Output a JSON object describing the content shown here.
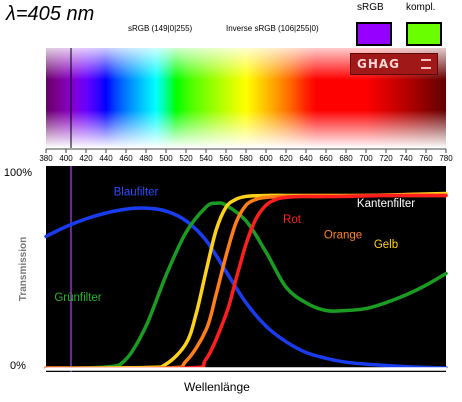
{
  "wavelength": {
    "title": "λ=405 nm",
    "srgb": "sRGB (149|0|255)",
    "inverse": "Inverse sRGB (106|255|0)",
    "swatch_label_srgb": "sRGB",
    "swatch_label_kompl": "kompl.",
    "swatch_color_srgb": "#9500ff",
    "swatch_color_kompl": "#6aff00"
  },
  "logo_text": "GHAG",
  "chart_data": {
    "type": "line",
    "title": "",
    "xlabel": "Wellenlänge",
    "ylabel": "Transmission",
    "xlim": [
      380,
      780
    ],
    "ylim": [
      0,
      100
    ],
    "x_ticks": [
      380,
      400,
      420,
      440,
      460,
      480,
      500,
      520,
      540,
      560,
      580,
      600,
      620,
      640,
      660,
      680,
      700,
      720,
      740,
      760,
      780
    ],
    "y_tick_labels": [
      {
        "value": 100,
        "label": "100%"
      },
      {
        "value": 0,
        "label": "0%"
      }
    ],
    "marker_wavelength": 405,
    "marker_color": "#b040ff",
    "background": "#000000",
    "grid": false,
    "series": [
      {
        "name": "Blaufilter",
        "color": "#1a3cf0",
        "x": [
          380,
          400,
          420,
          440,
          460,
          480,
          500,
          520,
          540,
          560,
          580,
          600,
          620,
          640,
          660,
          680,
          700,
          720,
          740,
          760,
          780
        ],
        "y": [
          68,
          73,
          77,
          80,
          82,
          82.5,
          81,
          76,
          66,
          50,
          34,
          22,
          14,
          8.5,
          5.5,
          3.5,
          2.5,
          1.8,
          1.2,
          0.8,
          0.5
        ]
      },
      {
        "name": "Grünfilter",
        "color": "#1a9c22",
        "x": [
          380,
          440,
          460,
          480,
          500,
          520,
          540,
          550,
          560,
          580,
          600,
          620,
          640,
          660,
          680,
          700,
          720,
          740,
          760,
          780
        ],
        "y": [
          0.5,
          1,
          5,
          22,
          48,
          70,
          83,
          85,
          84,
          76,
          60,
          42,
          34,
          30,
          30,
          31,
          34,
          38,
          43,
          49
        ]
      },
      {
        "name": "Gelb",
        "color": "#ffd21a",
        "x": [
          380,
          480,
          500,
          520,
          530,
          540,
          550,
          560,
          570,
          580,
          600,
          620,
          640,
          660,
          700,
          740,
          780
        ],
        "y": [
          0.5,
          0.8,
          2.5,
          13,
          28,
          50,
          71,
          83,
          87,
          88.5,
          89,
          89,
          89,
          89,
          89,
          89.5,
          90
        ]
      },
      {
        "name": "Orange",
        "color": "#ff7e18",
        "x": [
          380,
          500,
          520,
          540,
          550,
          560,
          570,
          580,
          590,
          600,
          620,
          660,
          700,
          740,
          780
        ],
        "y": [
          0.5,
          0.5,
          4,
          20,
          38,
          58,
          75,
          84,
          87,
          88,
          88.5,
          88.5,
          89,
          89,
          89
        ]
      },
      {
        "name": "Rot",
        "color": "#ff1e1e",
        "x": [
          380,
          520,
          540,
          560,
          570,
          580,
          590,
          600,
          610,
          620,
          640,
          680,
          720,
          780
        ],
        "y": [
          0.3,
          0.5,
          5,
          28,
          46,
          64,
          77,
          84,
          87,
          88,
          88.5,
          88.5,
          89,
          89
        ]
      },
      {
        "name": "Kantenfilter",
        "color": "#ffffff",
        "x": [
          380,
          780
        ],
        "y": [
          0,
          0
        ]
      }
    ],
    "annotations": [
      {
        "text": "Blaufilter",
        "x": 470,
        "y": 89,
        "color": "#2a4cff"
      },
      {
        "text": "Grünfilter",
        "x": 412,
        "y": 35,
        "color": "#22b52a"
      },
      {
        "text": "Kantenfilter",
        "x": 720,
        "y": 83,
        "color": "#ffffff"
      },
      {
        "text": "Rot",
        "x": 626,
        "y": 75,
        "color": "#ff2020"
      },
      {
        "text": "Orange",
        "x": 677,
        "y": 67,
        "color": "#ff8020"
      },
      {
        "text": "Gelb",
        "x": 720,
        "y": 62,
        "color": "#ffd020"
      }
    ]
  }
}
